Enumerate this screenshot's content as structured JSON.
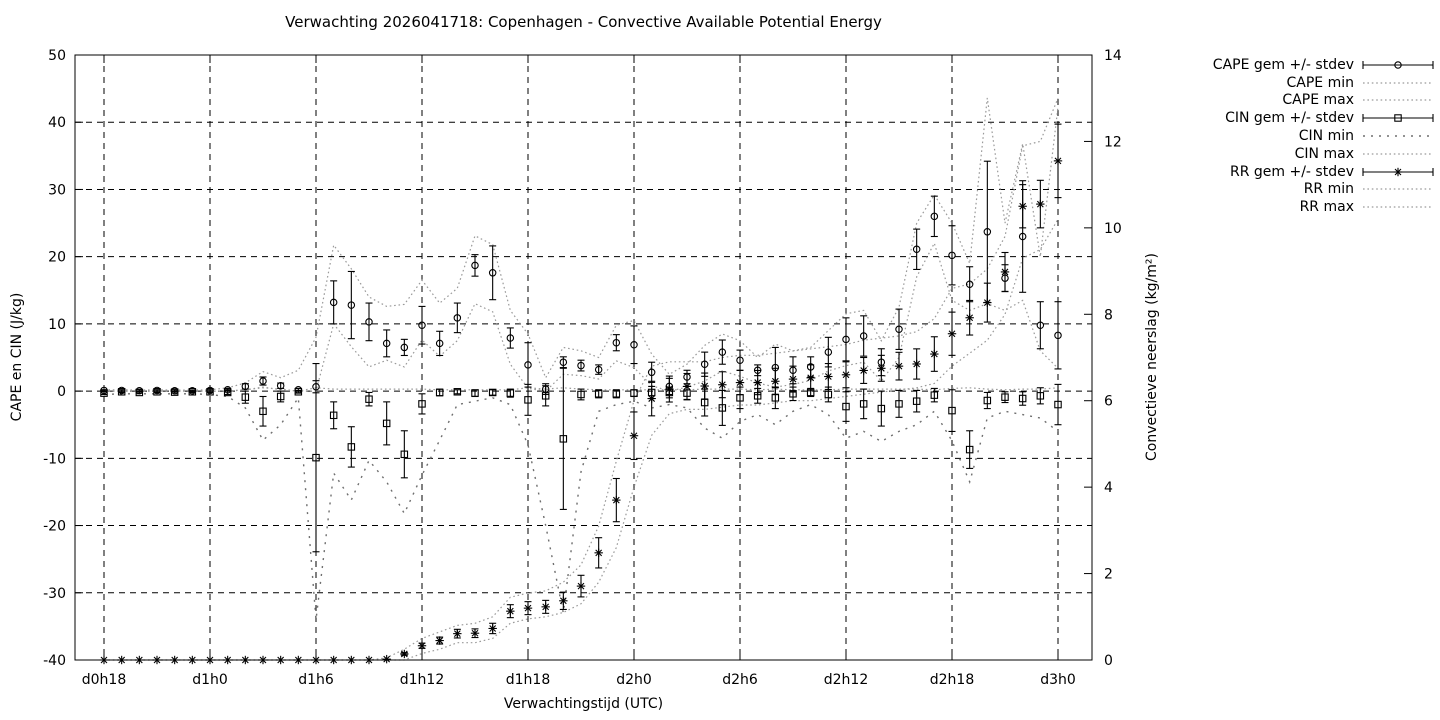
{
  "colors": {
    "foreground": "#000000",
    "background": "#ffffff",
    "grid": "#000000",
    "envelope": "#9a9a9a",
    "envelope_dark": "#6e6e6e"
  },
  "chart_data": {
    "type": "line",
    "title": "Verwachting 2026041718: Copenhagen - Convective Available Potential Energy",
    "xlabel": "Verwachtingstijd (UTC)",
    "ylabel": "CAPE en CIN (J/kg)",
    "y2label": "Convectieve neerslag (kg/m²)",
    "ylim": [
      -40,
      50
    ],
    "y2lim": [
      0,
      14
    ],
    "grid": true,
    "legend_position": "outside-right",
    "x_ticks": [
      {
        "hour": 18,
        "label": "d0h18"
      },
      {
        "hour": 24,
        "label": "d1h0"
      },
      {
        "hour": 30,
        "label": "d1h6"
      },
      {
        "hour": 36,
        "label": "d1h12"
      },
      {
        "hour": 42,
        "label": "d1h18"
      },
      {
        "hour": 48,
        "label": "d2h0"
      },
      {
        "hour": 54,
        "label": "d2h6"
      },
      {
        "hour": 60,
        "label": "d2h12"
      },
      {
        "hour": 66,
        "label": "d2h18"
      },
      {
        "hour": 72,
        "label": "d3h0"
      }
    ],
    "y_ticks": [
      50,
      40,
      30,
      20,
      10,
      0,
      -10,
      -20,
      -30,
      -40
    ],
    "y2_ticks": [
      14,
      12,
      10,
      8,
      6,
      4,
      2,
      0
    ],
    "x_hours": [
      18,
      19,
      20,
      21,
      22,
      23,
      24,
      25,
      26,
      27,
      28,
      29,
      30,
      31,
      32,
      33,
      34,
      35,
      36,
      37,
      38,
      39,
      40,
      41,
      42,
      43,
      44,
      45,
      46,
      47,
      48,
      49,
      50,
      51,
      52,
      53,
      54,
      55,
      56,
      57,
      58,
      59,
      60,
      61,
      62,
      63,
      64,
      65,
      66,
      67,
      68,
      69,
      70,
      71,
      72
    ],
    "series": [
      {
        "name": "CAPE gem +/- stdev",
        "axis": "y1",
        "style": "errorbar",
        "marker": "circle",
        "mean": [
          0.1,
          0.1,
          0.05,
          0.1,
          0.05,
          0.05,
          0.1,
          0.2,
          0.7,
          1.5,
          0.8,
          0.2,
          0.65,
          13.2,
          12.8,
          10.3,
          7.1,
          6.5,
          9.8,
          7.1,
          10.9,
          18.7,
          17.6,
          7.9,
          3.9,
          0.3,
          4.3,
          3.8,
          3.2,
          7.2,
          6.9,
          2.8,
          0.7,
          2.1,
          4,
          5.8,
          4.6,
          3.1,
          3.5,
          3.1,
          3.6,
          5.8,
          7.7,
          8.2,
          4.3,
          9.2,
          21.1,
          26,
          20.2,
          15.9,
          23.7,
          16.8,
          23,
          9.8,
          8.3
        ],
        "stdev": [
          0.1,
          0.1,
          0.1,
          0.1,
          0.1,
          0.1,
          0.1,
          0.2,
          0.4,
          0.6,
          0.4,
          0.2,
          0.9,
          3.2,
          5,
          2.8,
          2,
          1.2,
          2.8,
          1.8,
          2.2,
          1.6,
          4,
          1.5,
          3.3,
          0.8,
          0.8,
          0.8,
          0.7,
          1.2,
          2.8,
          1.5,
          1.2,
          1,
          1.8,
          1.8,
          1.5,
          0.8,
          3,
          2,
          1.5,
          2.2,
          3.2,
          3,
          2,
          3,
          3,
          3,
          4.4,
          2.6,
          10.5,
          2,
          8.3,
          3.5,
          5
        ]
      },
      {
        "name": "CAPE min",
        "axis": "y1",
        "style": "dotted",
        "values": [
          0,
          0,
          0,
          0,
          0,
          0,
          0,
          0,
          0.2,
          0.6,
          0.2,
          0,
          0,
          10,
          6.6,
          3.6,
          4.6,
          3.6,
          7.6,
          5.2,
          7.5,
          13,
          11.8,
          4,
          0.4,
          0,
          2.5,
          2.3,
          1.8,
          4.5,
          3.5,
          0.8,
          0,
          0.6,
          1.5,
          3,
          2.2,
          1.2,
          0.6,
          1,
          1.6,
          3,
          3.8,
          4.3,
          1.5,
          5,
          17,
          22,
          13.5,
          12,
          13,
          12,
          13.5,
          6,
          3.4
        ]
      },
      {
        "name": "CAPE max",
        "axis": "y1",
        "style": "dotted",
        "values": [
          0.2,
          0.2,
          0.15,
          0.2,
          0.15,
          0.15,
          0.2,
          0.5,
          1.2,
          2.9,
          2,
          3.1,
          8,
          21.7,
          18.2,
          14,
          12.6,
          12.9,
          16.5,
          13.1,
          15.3,
          23.1,
          21.8,
          12,
          8.5,
          2,
          6.5,
          6,
          5,
          9.8,
          10.5,
          5.5,
          2.5,
          4,
          6.8,
          8.5,
          7.5,
          5,
          7,
          6,
          6.5,
          9,
          11.5,
          12,
          7.5,
          12.5,
          25,
          29.2,
          25,
          19,
          43.6,
          25,
          36.8,
          20,
          42.3
        ]
      },
      {
        "name": "CIN gem +/- stdev",
        "axis": "y1",
        "style": "errorbar",
        "marker": "square",
        "mean": [
          -0.3,
          -0.1,
          -0.2,
          -0.1,
          -0.15,
          -0.1,
          -0.1,
          -0.2,
          -0.9,
          -3,
          -0.8,
          -0.1,
          -9.9,
          -3.6,
          -8.3,
          -1.2,
          -4.8,
          -9.4,
          -1.9,
          -0.2,
          -0.1,
          -0.3,
          -0.2,
          -0.3,
          -1.3,
          -0.7,
          -7.1,
          -0.5,
          -0.4,
          -0.4,
          -0.3,
          -0.2,
          -0.2,
          -0.3,
          -1.7,
          -2.5,
          -1,
          -0.7,
          -1,
          -0.4,
          -0.2,
          -0.5,
          -2.3,
          -1.9,
          -2.6,
          -1.9,
          -1.5,
          -0.6,
          -2.9,
          -8.7,
          -1.4,
          -0.9,
          -1.1,
          -0.7,
          -2
        ],
        "stdev": [
          0.2,
          0.1,
          0.1,
          0.1,
          0.1,
          0.1,
          0.1,
          0.3,
          0.9,
          2.2,
          0.8,
          0.2,
          14,
          2,
          3,
          1,
          3.2,
          3.5,
          1.5,
          0.5,
          0.3,
          0.5,
          0.4,
          0.6,
          2.3,
          1.5,
          10.5,
          0.8,
          0.6,
          0.6,
          0.5,
          0.9,
          0.8,
          1,
          2,
          2.6,
          1.6,
          1.1,
          1.6,
          1,
          0.6,
          1.1,
          2.2,
          2.2,
          2.6,
          2,
          1.6,
          1,
          3.1,
          2.8,
          1.2,
          0.8,
          1,
          1.2,
          3
        ]
      },
      {
        "name": "CIN min",
        "axis": "y1",
        "style": "dotted-sparse",
        "values": [
          -0.5,
          -0.4,
          -0.4,
          -0.4,
          -0.4,
          -0.4,
          -0.5,
          -0.8,
          -2.5,
          -7.3,
          -5,
          -1,
          -34,
          -12.2,
          -16.2,
          -10.3,
          -13.5,
          -18.2,
          -12.5,
          -7.3,
          -2,
          -1.5,
          -1,
          -2,
          -8,
          -20,
          -33,
          -12,
          -3,
          -2,
          -1.5,
          -2.5,
          -2,
          -2.5,
          -5.5,
          -7,
          -4.5,
          -3.5,
          -5,
          -3,
          -2,
          -3.5,
          -7,
          -6,
          -7.5,
          -6,
          -5,
          -3,
          -7.4,
          -13.5,
          -4,
          -3,
          -3.5,
          -4,
          -6
        ]
      },
      {
        "name": "CIN max",
        "axis": "y1",
        "style": "dotted",
        "values": [
          0,
          0,
          0,
          0,
          0,
          0,
          0,
          0,
          0.2,
          0.5,
          0.3,
          0,
          0.5,
          0.3,
          0.3,
          0.3,
          0.3,
          0.3,
          0.3,
          0.2,
          0.2,
          0.2,
          0.2,
          0.2,
          0.5,
          0.3,
          0.5,
          0.3,
          0.2,
          0.2,
          0.2,
          0.2,
          0.2,
          0.2,
          0.3,
          0.3,
          0.3,
          0.2,
          0.3,
          0.2,
          0.2,
          0.2,
          0.3,
          0.3,
          0.3,
          0.3,
          0.3,
          0.2,
          0.4,
          0.5,
          0.3,
          0.2,
          0.3,
          0.3,
          0.5
        ]
      },
      {
        "name": "RR gem +/- stdev",
        "axis": "y2",
        "style": "errorbar",
        "marker": "star",
        "mean": [
          0,
          0,
          0,
          0,
          0,
          0,
          0,
          0,
          0,
          0,
          0,
          0,
          0,
          0,
          0,
          0,
          0.02,
          0.14,
          0.33,
          0.45,
          0.61,
          0.62,
          0.73,
          1.13,
          1.2,
          1.23,
          1.37,
          1.71,
          2.48,
          3.7,
          5.19,
          6.05,
          6.27,
          6.33,
          6.34,
          6.37,
          6.42,
          6.42,
          6.45,
          6.5,
          6.53,
          6.56,
          6.6,
          6.7,
          6.75,
          6.8,
          6.85,
          7.08,
          7.55,
          7.92,
          8.27,
          8.98,
          10.5,
          10.55,
          11.55
        ],
        "stdev": [
          0,
          0,
          0,
          0,
          0,
          0,
          0,
          0,
          0,
          0,
          0,
          0,
          0,
          0,
          0,
          0,
          0.01,
          0.03,
          0.06,
          0.08,
          0.1,
          0.1,
          0.12,
          0.15,
          0.15,
          0.15,
          0.2,
          0.25,
          0.35,
          0.5,
          0.55,
          0.4,
          0.3,
          0.3,
          0.3,
          0.3,
          0.28,
          0.28,
          0.3,
          0.3,
          0.3,
          0.3,
          0.3,
          0.3,
          0.3,
          0.32,
          0.35,
          0.4,
          0.5,
          0.4,
          0.45,
          0.45,
          0.5,
          0.55,
          0.85
        ]
      },
      {
        "name": "RR min",
        "axis": "y2",
        "style": "dotted",
        "values": [
          0,
          0,
          0,
          0,
          0,
          0,
          0,
          0,
          0,
          0,
          0,
          0,
          0,
          0,
          0,
          0,
          0,
          0,
          0.15,
          0.25,
          0.4,
          0.4,
          0.5,
          0.85,
          0.95,
          1,
          1.1,
          1.3,
          1.8,
          2.6,
          4,
          5.2,
          5.7,
          5.8,
          5.8,
          5.85,
          5.9,
          5.9,
          5.95,
          6,
          6,
          6.05,
          6.1,
          6.15,
          6.2,
          6.25,
          6.3,
          6.4,
          6.8,
          7.1,
          7.4,
          8,
          9.3,
          9.5,
          10.2
        ]
      },
      {
        "name": "RR max",
        "axis": "y2",
        "style": "dotted",
        "values": [
          0,
          0,
          0,
          0,
          0,
          0,
          0,
          0,
          0,
          0,
          0,
          0,
          0,
          0,
          0,
          0,
          0.05,
          0.25,
          0.5,
          0.65,
          0.8,
          0.85,
          1,
          1.45,
          1.55,
          1.6,
          1.8,
          2.2,
          3.1,
          4.6,
          6,
          6.8,
          6.9,
          6.9,
          6.9,
          7,
          7.05,
          7.05,
          7.1,
          7.15,
          7.2,
          7.25,
          7.3,
          7.4,
          7.45,
          7.5,
          7.6,
          7.9,
          8.6,
          8.7,
          9.05,
          9.8,
          11.9,
          12,
          13
        ]
      }
    ]
  }
}
